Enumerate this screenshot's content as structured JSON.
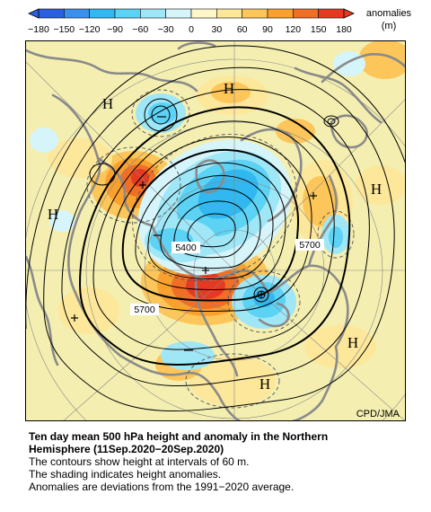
{
  "legend": {
    "ticks": [
      "−180",
      "−150",
      "−120",
      "−90",
      "−60",
      "−30",
      "0",
      "30",
      "60",
      "90",
      "120",
      "150",
      "180"
    ],
    "unit_line1": "anomalies",
    "unit_line2": "(m)",
    "colors": [
      "#2c5fe0",
      "#3a90ea",
      "#31b8f0",
      "#5cd2f4",
      "#9fe7f7",
      "#d6f5fa",
      "#fff7c8",
      "#fde79a",
      "#fcc65a",
      "#f8a12e",
      "#f06f26",
      "#e53a21"
    ]
  },
  "map": {
    "pressure_symbols": [
      {
        "label": "H",
        "pos": "top-center"
      },
      {
        "label": "H",
        "pos": "upper-left"
      },
      {
        "label": "H",
        "pos": "left"
      },
      {
        "label": "H",
        "pos": "right"
      },
      {
        "label": "H",
        "pos": "lower-right"
      },
      {
        "label": "H",
        "pos": "bottom"
      }
    ],
    "contour_labels": [
      "5400",
      "5700",
      "5700"
    ],
    "credit": "CPD/JMA"
  },
  "caption": {
    "title_line1": "Ten day mean 500 hPa height and anomaly in the Northern",
    "title_line2": "Hemisphere (11Sep.2020−20Sep.2020)",
    "line1": "The contours show height at intervals of 60 m.",
    "line2": "The shading indicates height anomalies.",
    "line3": "Anomalies are deviations from the 1991−2020 average."
  }
}
